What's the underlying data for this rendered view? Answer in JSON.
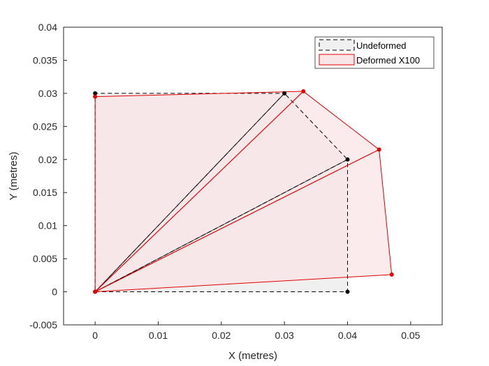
{
  "chart_data": {
    "type": "line",
    "xlabel": "X (metres)",
    "ylabel": "Y (metres)",
    "xlim": [
      -0.005,
      0.055
    ],
    "ylim": [
      -0.005,
      0.04
    ],
    "xticks": [
      0,
      0.01,
      0.02,
      0.03,
      0.04,
      0.05
    ],
    "xtick_labels": [
      "0",
      "0.01",
      "0.02",
      "0.03",
      "0.04",
      "0.05"
    ],
    "yticks": [
      -0.005,
      0,
      0.005,
      0.01,
      0.015,
      0.02,
      0.025,
      0.03,
      0.035,
      0.04
    ],
    "ytick_labels": [
      "-0.005",
      "0",
      "0.005",
      "0.01",
      "0.015",
      "0.02",
      "0.025",
      "0.03",
      "0.035",
      "0.04"
    ],
    "grid": false,
    "legend_position": "top-right",
    "series": [
      {
        "name": "Undeformed",
        "color": "#000000",
        "fill": "#f0f0f0",
        "line_style": "dashed",
        "nodes": [
          [
            0,
            0
          ],
          [
            0.04,
            0
          ],
          [
            0.04,
            0.02
          ],
          [
            0.03,
            0.03
          ],
          [
            0,
            0.03
          ]
        ],
        "elements": [
          [
            0,
            1,
            2
          ],
          [
            0,
            2,
            3
          ],
          [
            0,
            3,
            4
          ]
        ]
      },
      {
        "name": "Deformed X100",
        "color": "#e00000",
        "fill": "#f9e4e6",
        "line_style": "solid",
        "nodes": [
          [
            0,
            0
          ],
          [
            0.047,
            0.0026
          ],
          [
            0.045,
            0.0215
          ],
          [
            0.033,
            0.0303
          ],
          [
            0,
            0.0295
          ]
        ],
        "elements": [
          [
            0,
            1,
            2
          ],
          [
            0,
            2,
            3
          ],
          [
            0,
            3,
            4
          ]
        ]
      }
    ]
  }
}
